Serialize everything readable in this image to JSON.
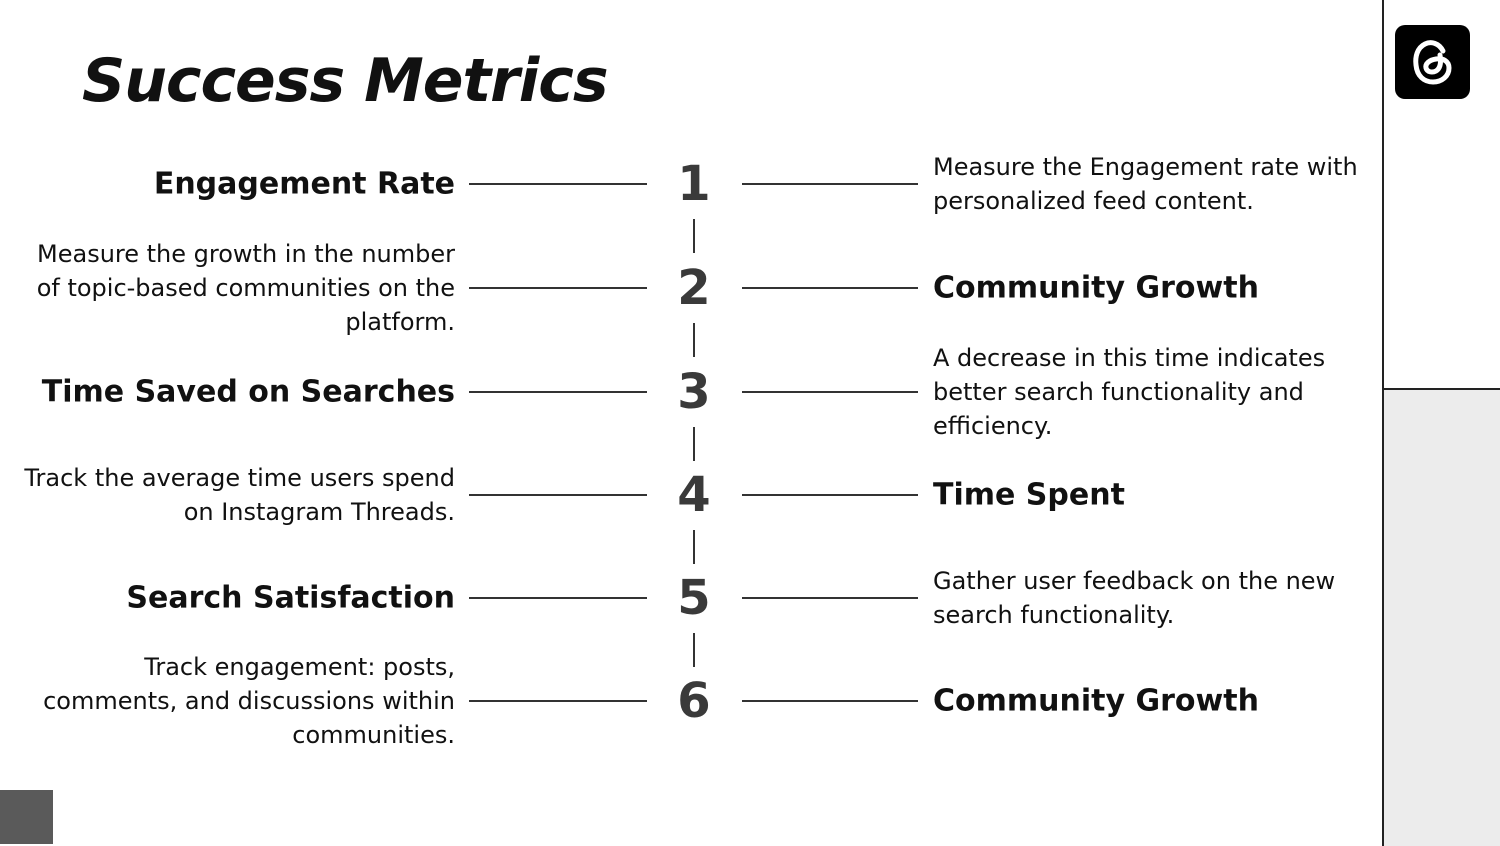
{
  "title": "Success Metrics",
  "logo_icon": "threads-logo-icon",
  "rows": [
    {
      "number": "1",
      "left": {
        "kind": "metric",
        "text": "Engagement Rate"
      },
      "right": {
        "kind": "desc",
        "text": "Measure the Engagement rate with personalized feed content."
      }
    },
    {
      "number": "2",
      "left": {
        "kind": "desc",
        "text": "Measure the growth in the number of topic-based communities on the platform."
      },
      "right": {
        "kind": "metric",
        "text": "Community Growth"
      }
    },
    {
      "number": "3",
      "left": {
        "kind": "metric",
        "text": "Time Saved on Searches"
      },
      "right": {
        "kind": "desc",
        "text": "A decrease in this time indicates better search functionality and efficiency."
      }
    },
    {
      "number": "4",
      "left": {
        "kind": "desc",
        "text": "Track the average time users spend on Instagram Threads."
      },
      "right": {
        "kind": "metric",
        "text": "Time Spent"
      }
    },
    {
      "number": "5",
      "left": {
        "kind": "metric",
        "text": "Search Satisfaction"
      },
      "right": {
        "kind": "desc",
        "text": "Gather user feedback on the new search functionality."
      }
    },
    {
      "number": "6",
      "left": {
        "kind": "desc",
        "text": "Track engagement: posts, comments, and discussions within communities."
      },
      "right": {
        "kind": "metric",
        "text": "Community Growth"
      }
    }
  ]
}
